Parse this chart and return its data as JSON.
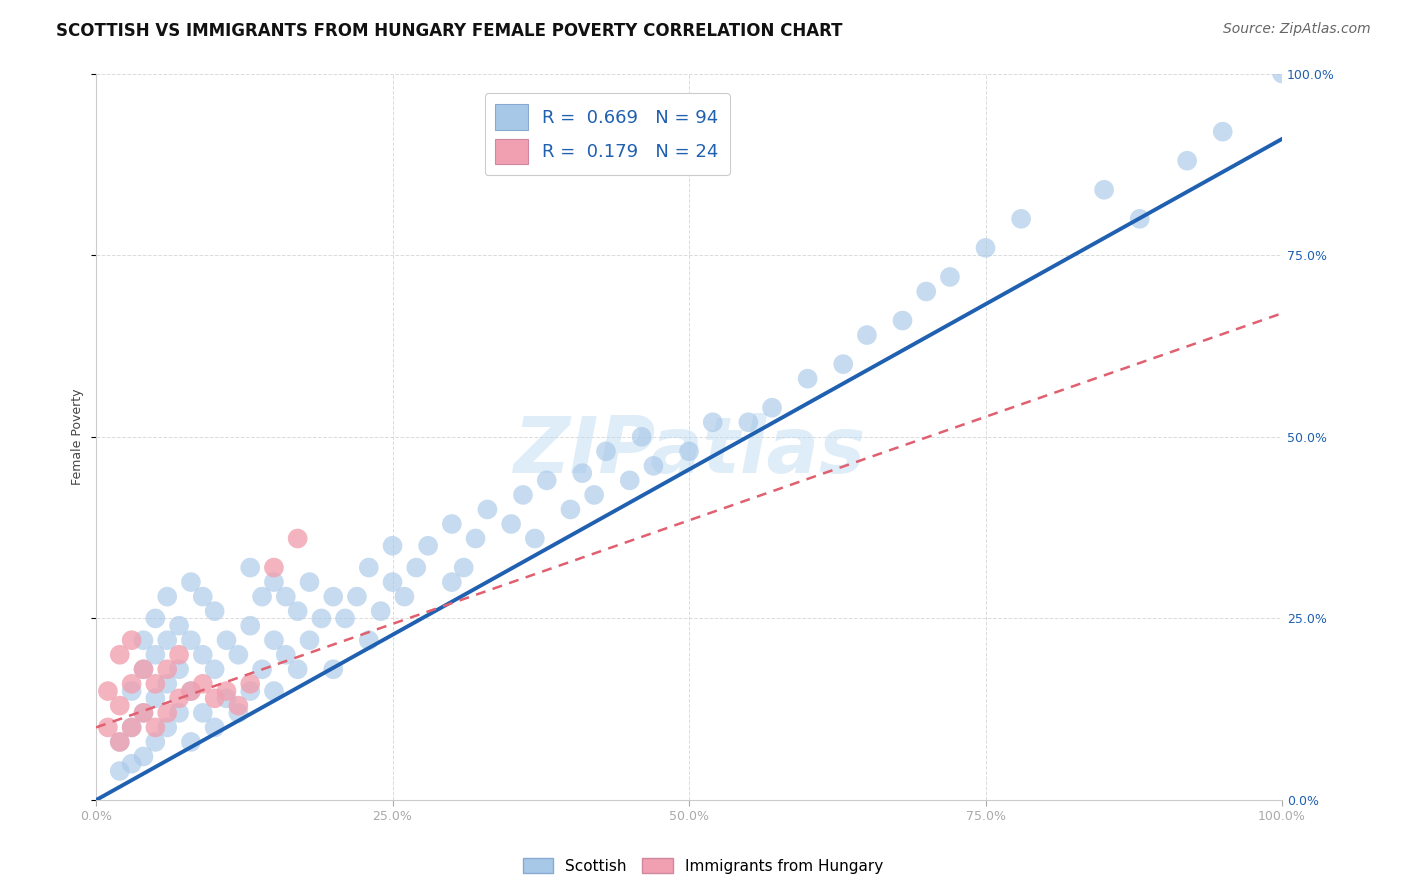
{
  "title": "SCOTTISH VS IMMIGRANTS FROM HUNGARY FEMALE POVERTY CORRELATION CHART",
  "source_text": "Source: ZipAtlas.com",
  "ylabel": "Female Poverty",
  "xlim": [
    0,
    1
  ],
  "ylim": [
    0,
    1
  ],
  "xticks": [
    0.0,
    0.25,
    0.5,
    0.75,
    1.0
  ],
  "yticks": [
    0.0,
    0.25,
    0.5,
    0.75,
    1.0
  ],
  "xticklabels": [
    "0.0%",
    "25.0%",
    "50.0%",
    "75.0%",
    "100.0%"
  ],
  "yticklabels": [
    "0.0%",
    "25.0%",
    "50.0%",
    "75.0%",
    "100.0%"
  ],
  "legend_r1": "0.669",
  "legend_n1": "94",
  "legend_r2": "0.179",
  "legend_n2": "24",
  "blue_color": "#a8c8e8",
  "pink_color": "#f0a0b0",
  "line_blue": "#2060b0",
  "line_pink": "#e06070",
  "watermark": "ZIPatlas",
  "background_color": "#ffffff",
  "grid_color": "#cccccc",
  "blue_scatter_x": [
    0.02,
    0.02,
    0.03,
    0.03,
    0.03,
    0.04,
    0.04,
    0.04,
    0.04,
    0.05,
    0.05,
    0.05,
    0.05,
    0.06,
    0.06,
    0.06,
    0.06,
    0.07,
    0.07,
    0.07,
    0.08,
    0.08,
    0.08,
    0.08,
    0.09,
    0.09,
    0.09,
    0.1,
    0.1,
    0.1,
    0.11,
    0.11,
    0.12,
    0.12,
    0.13,
    0.13,
    0.13,
    0.14,
    0.14,
    0.15,
    0.15,
    0.15,
    0.16,
    0.16,
    0.17,
    0.17,
    0.18,
    0.18,
    0.19,
    0.2,
    0.2,
    0.21,
    0.22,
    0.23,
    0.23,
    0.24,
    0.25,
    0.25,
    0.26,
    0.27,
    0.28,
    0.3,
    0.3,
    0.31,
    0.32,
    0.33,
    0.35,
    0.36,
    0.37,
    0.38,
    0.4,
    0.41,
    0.42,
    0.43,
    0.45,
    0.46,
    0.47,
    0.5,
    0.52,
    0.55,
    0.57,
    0.6,
    0.63,
    0.65,
    0.68,
    0.7,
    0.72,
    0.75,
    0.78,
    0.85,
    0.88,
    0.92,
    0.95,
    1.0
  ],
  "blue_scatter_y": [
    0.04,
    0.08,
    0.05,
    0.1,
    0.15,
    0.06,
    0.12,
    0.18,
    0.22,
    0.08,
    0.14,
    0.2,
    0.25,
    0.1,
    0.16,
    0.22,
    0.28,
    0.12,
    0.18,
    0.24,
    0.08,
    0.15,
    0.22,
    0.3,
    0.12,
    0.2,
    0.28,
    0.1,
    0.18,
    0.26,
    0.14,
    0.22,
    0.12,
    0.2,
    0.15,
    0.24,
    0.32,
    0.18,
    0.28,
    0.15,
    0.22,
    0.3,
    0.2,
    0.28,
    0.18,
    0.26,
    0.22,
    0.3,
    0.25,
    0.18,
    0.28,
    0.25,
    0.28,
    0.22,
    0.32,
    0.26,
    0.3,
    0.35,
    0.28,
    0.32,
    0.35,
    0.3,
    0.38,
    0.32,
    0.36,
    0.4,
    0.38,
    0.42,
    0.36,
    0.44,
    0.4,
    0.45,
    0.42,
    0.48,
    0.44,
    0.5,
    0.46,
    0.48,
    0.52,
    0.52,
    0.54,
    0.58,
    0.6,
    0.64,
    0.66,
    0.7,
    0.72,
    0.76,
    0.8,
    0.84,
    0.8,
    0.88,
    0.92,
    1.0
  ],
  "pink_scatter_x": [
    0.01,
    0.01,
    0.02,
    0.02,
    0.02,
    0.03,
    0.03,
    0.03,
    0.04,
    0.04,
    0.05,
    0.05,
    0.06,
    0.06,
    0.07,
    0.07,
    0.08,
    0.09,
    0.1,
    0.11,
    0.12,
    0.13,
    0.15,
    0.17
  ],
  "pink_scatter_y": [
    0.1,
    0.15,
    0.08,
    0.13,
    0.2,
    0.1,
    0.16,
    0.22,
    0.12,
    0.18,
    0.1,
    0.16,
    0.12,
    0.18,
    0.14,
    0.2,
    0.15,
    0.16,
    0.14,
    0.15,
    0.13,
    0.16,
    0.32,
    0.36
  ],
  "blue_line_x0": 0.0,
  "blue_line_y0": 0.0,
  "blue_line_x1": 1.0,
  "blue_line_y1": 0.91,
  "pink_line_x0": 0.0,
  "pink_line_y0": 0.1,
  "pink_line_x1": 1.0,
  "pink_line_y1": 0.67,
  "title_fontsize": 12,
  "axis_label_fontsize": 9,
  "tick_fontsize": 9,
  "legend_fontsize": 13,
  "source_fontsize": 10
}
